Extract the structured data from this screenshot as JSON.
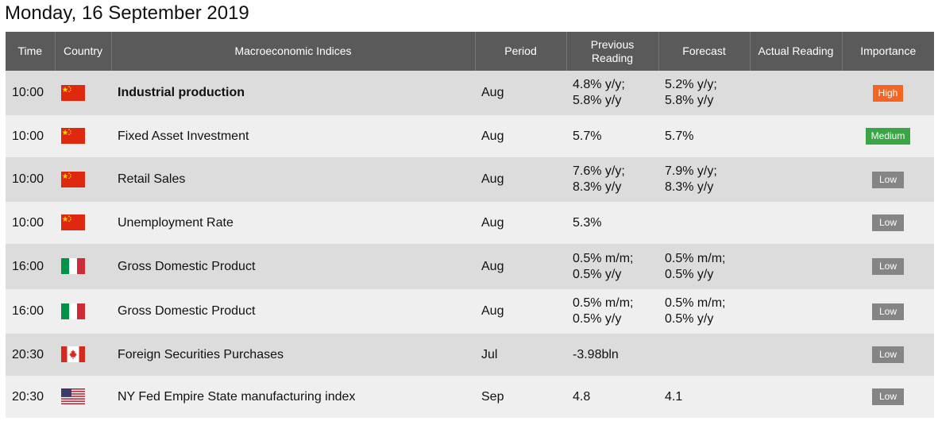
{
  "title": "Monday, 16 September 2019",
  "headers": {
    "time": "Time",
    "country": "Country",
    "indices": "Macroeconomic Indices",
    "period": "Period",
    "previous_l1": "Previous",
    "previous_l2": "Reading",
    "forecast": "Forecast",
    "actual": "Actual Reading",
    "importance": "Importance"
  },
  "colors": {
    "header_bg": "#5a5a5a",
    "row_odd": "#dcdcdc",
    "row_even": "#efefef",
    "high": "#f26522",
    "medium": "#3aa544",
    "low": "#858585"
  },
  "rows": [
    {
      "time": "10:00",
      "country": "china-flag-icon",
      "indicator": "Industrial production",
      "period": "Aug",
      "previous": [
        "4.8% y/y;",
        "5.8% y/y"
      ],
      "forecast": [
        "5.2% y/y;",
        "5.8% y/y"
      ],
      "actual": "",
      "importance": "High"
    },
    {
      "time": "10:00",
      "country": "china-flag-icon",
      "indicator": "Fixed Asset Investment",
      "period": "Aug",
      "previous": [
        "5.7%",
        ""
      ],
      "forecast": [
        "5.7%",
        ""
      ],
      "actual": "",
      "importance": "Medium"
    },
    {
      "time": "10:00",
      "country": "china-flag-icon",
      "indicator": "Retail Sales",
      "period": "Aug",
      "previous": [
        "7.6% y/y;",
        "8.3% y/y"
      ],
      "forecast": [
        "7.9% y/y;",
        "8.3% y/y"
      ],
      "actual": "",
      "importance": "Low"
    },
    {
      "time": "10:00",
      "country": "china-flag-icon",
      "indicator": "Unemployment Rate",
      "period": "Aug",
      "previous": [
        "5.3%",
        ""
      ],
      "forecast": [
        "",
        ""
      ],
      "actual": "",
      "importance": "Low"
    },
    {
      "time": "16:00",
      "country": "italy-flag-icon",
      "indicator": "Gross Domestic Product",
      "period": "Aug",
      "previous": [
        "0.5% m/m;",
        "0.5% y/y"
      ],
      "forecast": [
        "0.5% m/m;",
        "0.5% y/y"
      ],
      "actual": "",
      "importance": "Low"
    },
    {
      "time": "16:00",
      "country": "italy-flag-icon",
      "indicator": "Gross Domestic Product",
      "period": "Aug",
      "previous": [
        "0.5% m/m;",
        "0.5% y/y"
      ],
      "forecast": [
        "0.5% m/m;",
        "0.5% y/y"
      ],
      "actual": "",
      "importance": "Low"
    },
    {
      "time": "20:30",
      "country": "canada-flag-icon",
      "indicator": "Foreign Securities Purchases",
      "period": "Jul",
      "previous": [
        "-3.98bln",
        ""
      ],
      "forecast": [
        "",
        ""
      ],
      "actual": "",
      "importance": "Low"
    },
    {
      "time": "20:30",
      "country": "usa-flag-icon",
      "indicator": "NY Fed Empire State manufacturing index",
      "period": "Sep",
      "previous": [
        "4.8",
        ""
      ],
      "forecast": [
        "4.1",
        ""
      ],
      "actual": "",
      "importance": "Low"
    }
  ]
}
